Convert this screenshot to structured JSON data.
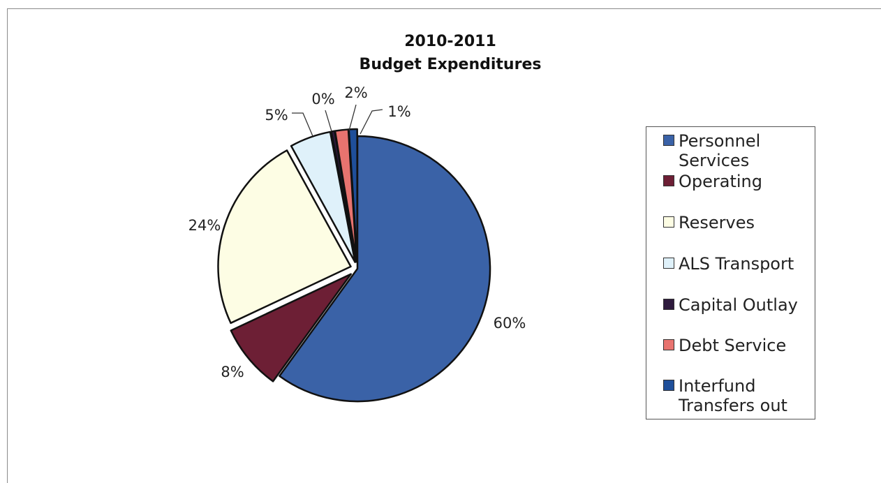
{
  "chart_data": {
    "type": "pie",
    "title": "2010-2011",
    "subtitle": "Budget Expenditures",
    "slices": [
      {
        "name": "Personnel Services",
        "value": 60,
        "label": "60%",
        "color": "#3a62a7"
      },
      {
        "name": "Operating",
        "value": 8,
        "label": "8%",
        "color": "#6d1f35"
      },
      {
        "name": "Reserves",
        "value": 24,
        "label": "24%",
        "color": "#fdfde4"
      },
      {
        "name": "ALS Transport",
        "value": 5,
        "label": "5%",
        "color": "#dff1fa"
      },
      {
        "name": "Capital Outlay",
        "value": 0.4,
        "label": "0%",
        "color": "#2e1a3d"
      },
      {
        "name": "Debt Service",
        "value": 1.6,
        "label": "2%",
        "color": "#e8736f"
      },
      {
        "name": "Interfund Transfers out",
        "value": 1,
        "label": "1%",
        "color": "#1f4f9a"
      }
    ],
    "legend_position": "right",
    "legend": [
      {
        "label": "Personnel Services",
        "color": "#3a62a7"
      },
      {
        "label": "Operating",
        "color": "#6d1f35"
      },
      {
        "label": "Reserves",
        "color": "#fdfde4"
      },
      {
        "label": "ALS Transport",
        "color": "#dff1fa"
      },
      {
        "label": "Capital Outlay",
        "color": "#2e1a3d"
      },
      {
        "label": "Debt Service",
        "color": "#e8736f"
      },
      {
        "label": "Interfund Transfers out",
        "color": "#1f4f9a"
      }
    ]
  }
}
